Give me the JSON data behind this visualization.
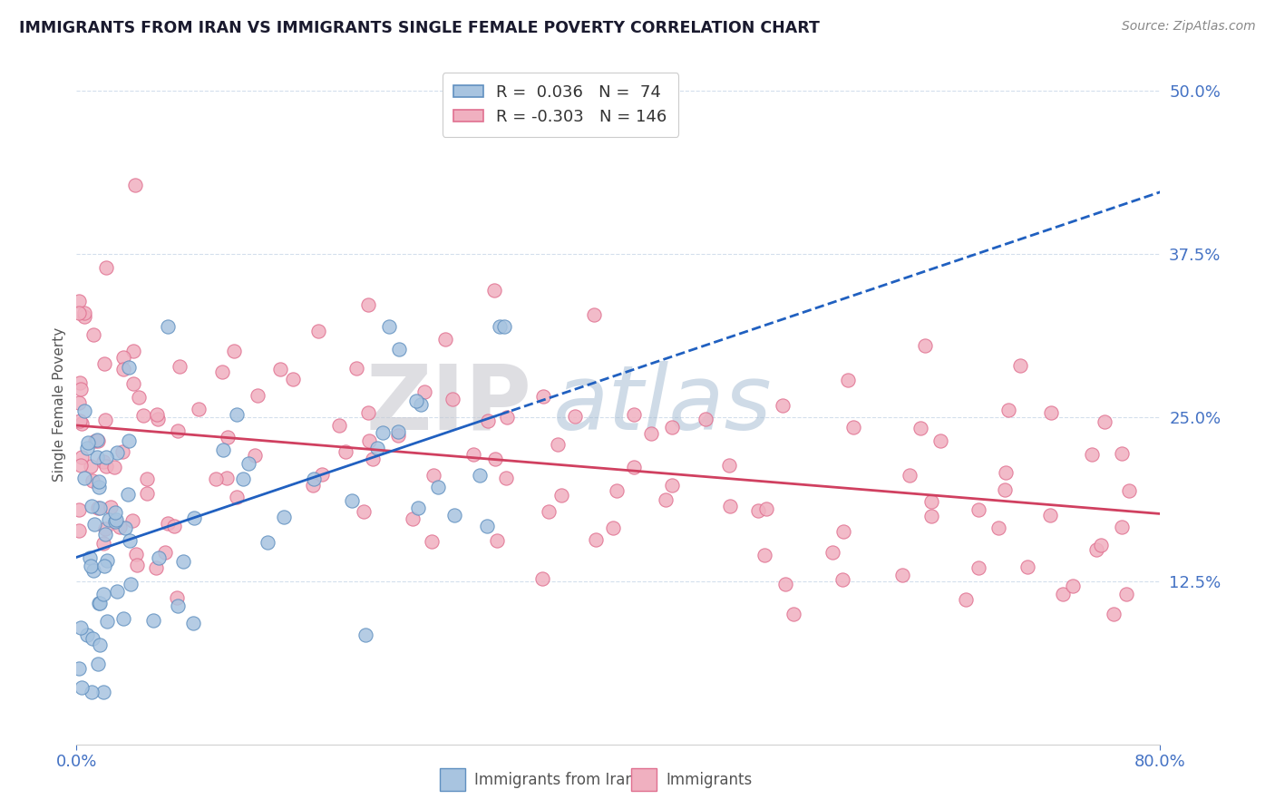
{
  "title": "IMMIGRANTS FROM IRAN VS IMMIGRANTS SINGLE FEMALE POVERTY CORRELATION CHART",
  "source": "Source: ZipAtlas.com",
  "ylabel": "Single Female Poverty",
  "r_blue": 0.036,
  "n_blue": 74,
  "r_pink": -0.303,
  "n_pink": 146,
  "xlim": [
    0.0,
    0.8
  ],
  "ylim": [
    0.0,
    0.52
  ],
  "ytick_labels": [
    "12.5%",
    "25.0%",
    "37.5%",
    "50.0%"
  ],
  "ytick_values": [
    0.125,
    0.25,
    0.375,
    0.5
  ],
  "grid_color": "#c8d8e8",
  "blue_dot_color": "#a8c4e0",
  "blue_dot_edge": "#6090c0",
  "pink_dot_color": "#f0b0c0",
  "pink_dot_edge": "#e07090",
  "blue_line_color": "#2060c0",
  "pink_line_color": "#d04060",
  "watermark_zip": "ZIP",
  "watermark_atlas": "atlas",
  "watermark_zip_color": "#c8c8d0",
  "watermark_atlas_color": "#a0b8d0"
}
